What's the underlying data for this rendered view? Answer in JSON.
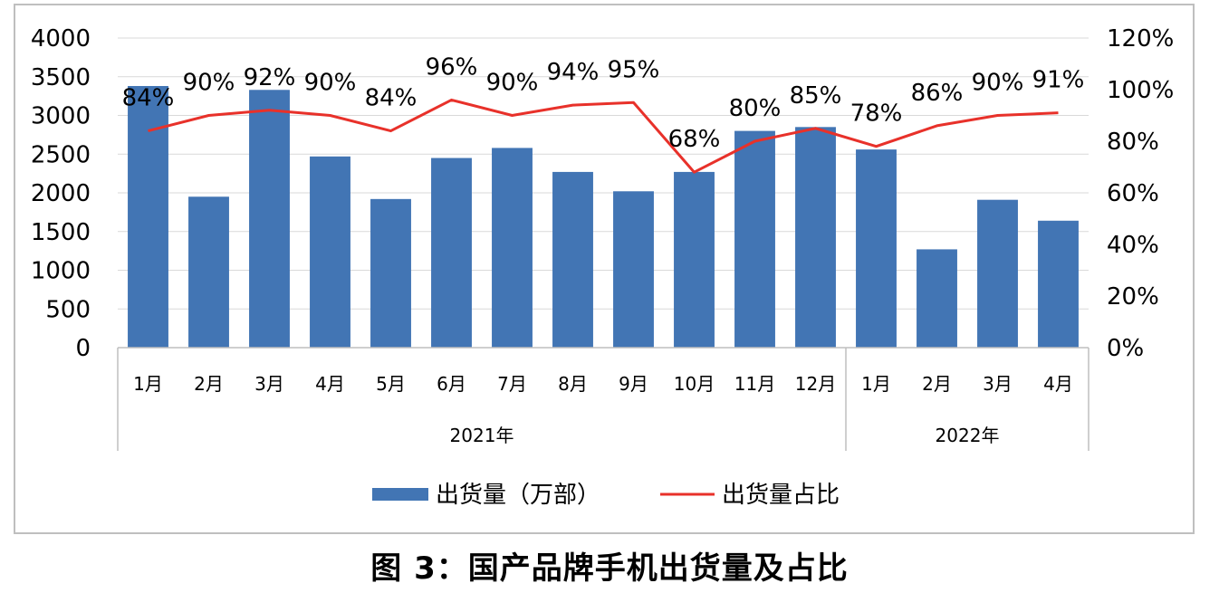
{
  "chart_data": {
    "type": "bar+line",
    "categories": [
      "1月",
      "2月",
      "3月",
      "4月",
      "5月",
      "6月",
      "7月",
      "8月",
      "9月",
      "10月",
      "11月",
      "12月",
      "1月",
      "2月",
      "3月",
      "4月"
    ],
    "groups": [
      {
        "label": "2021年",
        "start": 0,
        "end": 11
      },
      {
        "label": "2022年",
        "start": 12,
        "end": 15
      }
    ],
    "series": [
      {
        "name": "出货量（万部）",
        "type": "bar",
        "axis": "left",
        "values": [
          3380,
          1950,
          3330,
          2470,
          1920,
          2450,
          2580,
          2270,
          2020,
          2270,
          2800,
          2850,
          2560,
          1270,
          1910,
          1640
        ]
      },
      {
        "name": "出货量占比",
        "type": "line",
        "axis": "right",
        "values": [
          84,
          90,
          92,
          90,
          84,
          96,
          90,
          94,
          95,
          68,
          80,
          85,
          78,
          86,
          90,
          91
        ],
        "labels": [
          "84%",
          "90%",
          "92%",
          "90%",
          "84%",
          "96%",
          "90%",
          "94%",
          "95%",
          "68%",
          "80%",
          "85%",
          "78%",
          "86%",
          "90%",
          "91%"
        ]
      }
    ],
    "y_left": {
      "min": 0,
      "max": 4000,
      "ticks": [
        "0",
        "500",
        "1000",
        "1500",
        "2000",
        "2500",
        "3000",
        "3500",
        "4000"
      ]
    },
    "y_right": {
      "min": 0,
      "max": 120,
      "ticks": [
        "0%",
        "20%",
        "40%",
        "60%",
        "80%",
        "100%",
        "120%"
      ]
    },
    "grid": true,
    "legend_position": "bottom",
    "colors": {
      "bar": "#4275b4",
      "line": "#e8312a",
      "grid": "#d9d9d9",
      "axis": "#bfbfbf"
    }
  },
  "caption": "图 3：国产品牌手机出货量及占比"
}
